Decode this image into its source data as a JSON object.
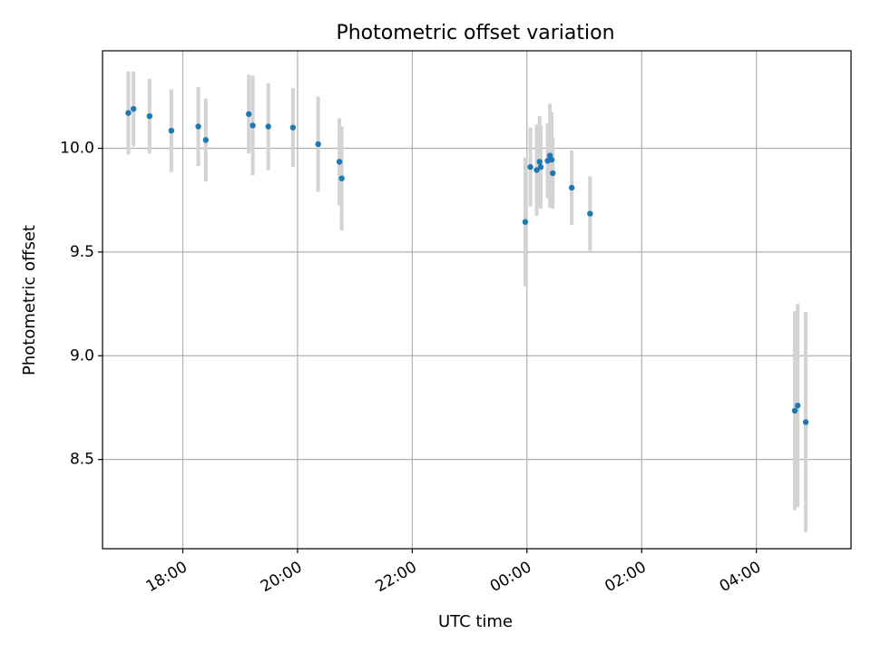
{
  "chart_data": {
    "type": "scatter",
    "title": "Photometric offset variation",
    "xlabel": "UTC time",
    "ylabel": "Photometric offset",
    "xlim_hours": [
      16.6,
      29.65
    ],
    "ylim": [
      8.07,
      10.47
    ],
    "x_ticks": [
      {
        "value": 18,
        "label": "18:00"
      },
      {
        "value": 20,
        "label": "20:00"
      },
      {
        "value": 22,
        "label": "22:00"
      },
      {
        "value": 24,
        "label": "00:00"
      },
      {
        "value": 26,
        "label": "02:00"
      },
      {
        "value": 28,
        "label": "04:00"
      }
    ],
    "y_ticks": [
      {
        "value": 8.5,
        "label": "8.5"
      },
      {
        "value": 9.0,
        "label": "9.0"
      },
      {
        "value": 9.5,
        "label": "9.5"
      },
      {
        "value": 10.0,
        "label": "10.0"
      }
    ],
    "grid": true,
    "point_color": "#1f77b4",
    "errorbar_color": "#d3d3d3",
    "points": [
      {
        "x": 17.05,
        "y": 10.17,
        "err": 0.2
      },
      {
        "x": 17.14,
        "y": 10.19,
        "err": 0.18
      },
      {
        "x": 17.42,
        "y": 10.155,
        "err": 0.18
      },
      {
        "x": 17.8,
        "y": 10.085,
        "err": 0.2
      },
      {
        "x": 18.27,
        "y": 10.105,
        "err": 0.19
      },
      {
        "x": 18.4,
        "y": 10.04,
        "err": 0.2
      },
      {
        "x": 19.15,
        "y": 10.165,
        "err": 0.19
      },
      {
        "x": 19.22,
        "y": 10.11,
        "err": 0.24
      },
      {
        "x": 19.49,
        "y": 10.105,
        "err": 0.21
      },
      {
        "x": 19.92,
        "y": 10.1,
        "err": 0.19
      },
      {
        "x": 20.36,
        "y": 10.02,
        "err": 0.23
      },
      {
        "x": 20.73,
        "y": 9.935,
        "err": 0.21
      },
      {
        "x": 20.77,
        "y": 9.855,
        "err": 0.25
      },
      {
        "x": 23.97,
        "y": 9.645,
        "err": 0.31
      },
      {
        "x": 24.06,
        "y": 9.91,
        "err": 0.19
      },
      {
        "x": 24.17,
        "y": 9.895,
        "err": 0.22
      },
      {
        "x": 24.22,
        "y": 9.935,
        "err": 0.22
      },
      {
        "x": 24.24,
        "y": 9.91,
        "err": 0.2
      },
      {
        "x": 24.36,
        "y": 9.94,
        "err": 0.18
      },
      {
        "x": 24.4,
        "y": 9.965,
        "err": 0.25
      },
      {
        "x": 24.43,
        "y": 9.945,
        "err": 0.23
      },
      {
        "x": 24.45,
        "y": 9.88,
        "err": 0.17
      },
      {
        "x": 24.78,
        "y": 9.81,
        "err": 0.18
      },
      {
        "x": 25.1,
        "y": 9.685,
        "err": 0.18
      },
      {
        "x": 28.67,
        "y": 8.735,
        "err": 0.48
      },
      {
        "x": 28.72,
        "y": 8.76,
        "err": 0.49
      },
      {
        "x": 28.86,
        "y": 8.68,
        "err": 0.53
      }
    ]
  }
}
